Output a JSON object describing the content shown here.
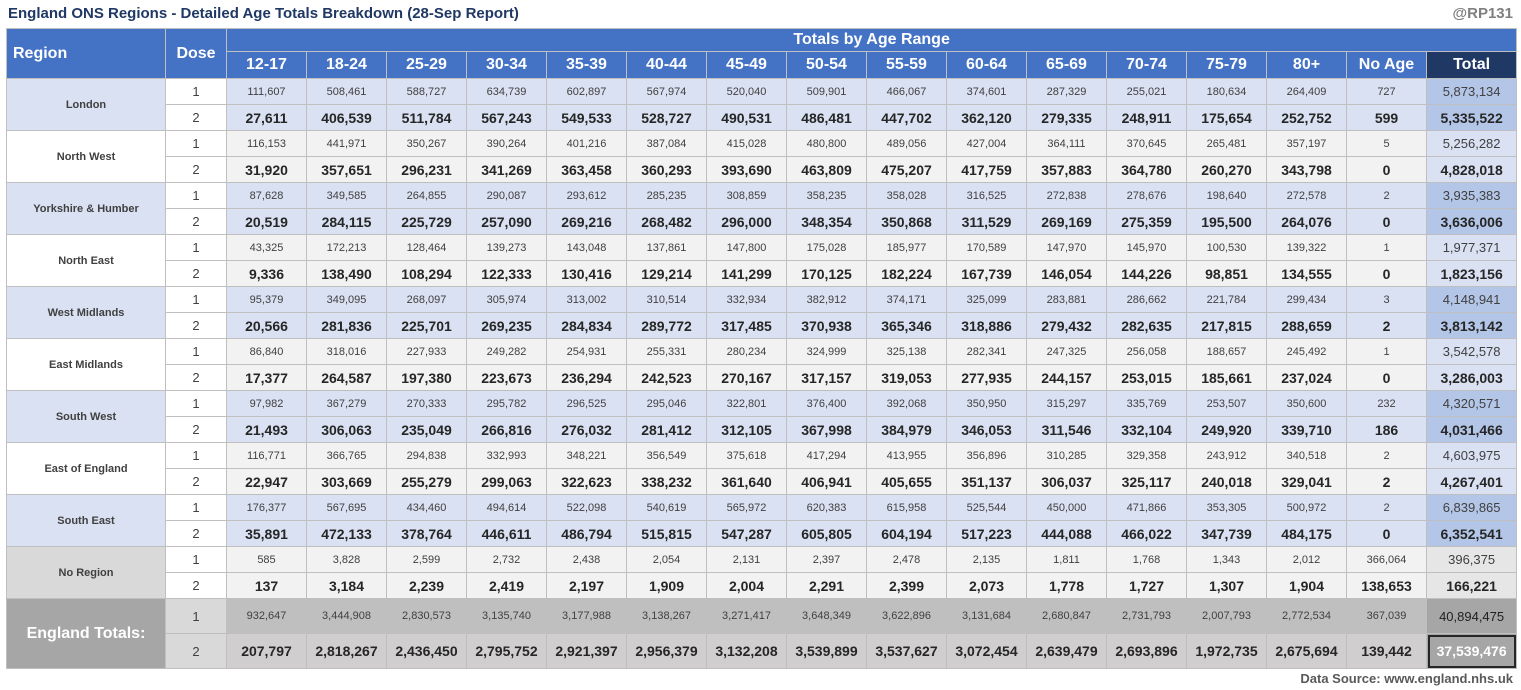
{
  "title": "England ONS Regions - Detailed Age Totals Breakdown (28-Sep Report)",
  "handle": "@RP131",
  "source": "Data Source: www.england.nhs.uk",
  "headers": {
    "region": "Region",
    "dose": "Dose",
    "group": "Totals by Age Range",
    "ages": [
      "12-17",
      "18-24",
      "25-29",
      "30-34",
      "35-39",
      "40-44",
      "45-49",
      "50-54",
      "55-59",
      "60-64",
      "65-69",
      "70-74",
      "75-79",
      "80+",
      "No Age"
    ],
    "total": "Total"
  },
  "regions": [
    {
      "name": "London",
      "style": "blue",
      "rows": [
        {
          "dose": "1",
          "values": [
            "111,607",
            "508,461",
            "588,727",
            "634,739",
            "602,897",
            "567,974",
            "520,040",
            "509,901",
            "466,067",
            "374,601",
            "287,329",
            "255,021",
            "180,634",
            "264,409",
            "727"
          ],
          "total": "5,873,134"
        },
        {
          "dose": "2",
          "values": [
            "27,611",
            "406,539",
            "511,784",
            "567,243",
            "549,533",
            "528,727",
            "490,531",
            "486,481",
            "447,702",
            "362,120",
            "279,335",
            "248,911",
            "175,654",
            "252,752",
            "599"
          ],
          "total": "5,335,522"
        }
      ]
    },
    {
      "name": "North West",
      "style": "white",
      "rows": [
        {
          "dose": "1",
          "values": [
            "116,153",
            "441,971",
            "350,267",
            "390,264",
            "401,216",
            "387,084",
            "415,028",
            "480,800",
            "489,056",
            "427,004",
            "364,111",
            "370,645",
            "265,481",
            "357,197",
            "5"
          ],
          "total": "5,256,282"
        },
        {
          "dose": "2",
          "values": [
            "31,920",
            "357,651",
            "296,231",
            "341,269",
            "363,458",
            "360,293",
            "393,690",
            "463,809",
            "475,207",
            "417,759",
            "357,883",
            "364,780",
            "260,270",
            "343,798",
            "0"
          ],
          "total": "4,828,018"
        }
      ]
    },
    {
      "name": "Yorkshire & Humber",
      "style": "blue",
      "rows": [
        {
          "dose": "1",
          "values": [
            "87,628",
            "349,585",
            "264,855",
            "290,087",
            "293,612",
            "285,235",
            "308,859",
            "358,235",
            "358,028",
            "316,525",
            "272,838",
            "278,676",
            "198,640",
            "272,578",
            "2"
          ],
          "total": "3,935,383"
        },
        {
          "dose": "2",
          "values": [
            "20,519",
            "284,115",
            "225,729",
            "257,090",
            "269,216",
            "268,482",
            "296,000",
            "348,354",
            "350,868",
            "311,529",
            "269,169",
            "275,359",
            "195,500",
            "264,076",
            "0"
          ],
          "total": "3,636,006"
        }
      ]
    },
    {
      "name": "North East",
      "style": "white",
      "rows": [
        {
          "dose": "1",
          "values": [
            "43,325",
            "172,213",
            "128,464",
            "139,273",
            "143,048",
            "137,861",
            "147,800",
            "175,028",
            "185,977",
            "170,589",
            "147,970",
            "145,970",
            "100,530",
            "139,322",
            "1"
          ],
          "total": "1,977,371"
        },
        {
          "dose": "2",
          "values": [
            "9,336",
            "138,490",
            "108,294",
            "122,333",
            "130,416",
            "129,214",
            "141,299",
            "170,125",
            "182,224",
            "167,739",
            "146,054",
            "144,226",
            "98,851",
            "134,555",
            "0"
          ],
          "total": "1,823,156"
        }
      ]
    },
    {
      "name": "West Midlands",
      "style": "blue",
      "rows": [
        {
          "dose": "1",
          "values": [
            "95,379",
            "349,095",
            "268,097",
            "305,974",
            "313,002",
            "310,514",
            "332,934",
            "382,912",
            "374,171",
            "325,099",
            "283,881",
            "286,662",
            "221,784",
            "299,434",
            "3"
          ],
          "total": "4,148,941"
        },
        {
          "dose": "2",
          "values": [
            "20,566",
            "281,836",
            "225,701",
            "269,235",
            "284,834",
            "289,772",
            "317,485",
            "370,938",
            "365,346",
            "318,886",
            "279,432",
            "282,635",
            "217,815",
            "288,659",
            "2"
          ],
          "total": "3,813,142"
        }
      ]
    },
    {
      "name": "East Midlands",
      "style": "white",
      "rows": [
        {
          "dose": "1",
          "values": [
            "86,840",
            "318,016",
            "227,933",
            "249,282",
            "254,931",
            "255,331",
            "280,234",
            "324,999",
            "325,138",
            "282,341",
            "247,325",
            "256,058",
            "188,657",
            "245,492",
            "1"
          ],
          "total": "3,542,578"
        },
        {
          "dose": "2",
          "values": [
            "17,377",
            "264,587",
            "197,380",
            "223,673",
            "236,294",
            "242,523",
            "270,167",
            "317,157",
            "319,053",
            "277,935",
            "244,157",
            "253,015",
            "185,661",
            "237,024",
            "0"
          ],
          "total": "3,286,003"
        }
      ]
    },
    {
      "name": "South West",
      "style": "blue",
      "rows": [
        {
          "dose": "1",
          "values": [
            "97,982",
            "367,279",
            "270,333",
            "295,782",
            "296,525",
            "295,046",
            "322,801",
            "376,400",
            "392,068",
            "350,950",
            "315,297",
            "335,769",
            "253,507",
            "350,600",
            "232"
          ],
          "total": "4,320,571"
        },
        {
          "dose": "2",
          "values": [
            "21,493",
            "306,063",
            "235,049",
            "266,816",
            "276,032",
            "281,412",
            "312,105",
            "367,998",
            "384,979",
            "346,053",
            "311,546",
            "332,104",
            "249,920",
            "339,710",
            "186"
          ],
          "total": "4,031,466"
        }
      ]
    },
    {
      "name": "East of England",
      "style": "white",
      "rows": [
        {
          "dose": "1",
          "values": [
            "116,771",
            "366,765",
            "294,838",
            "332,993",
            "348,221",
            "356,549",
            "375,618",
            "417,294",
            "413,955",
            "356,896",
            "310,285",
            "329,358",
            "243,912",
            "340,518",
            "2"
          ],
          "total": "4,603,975"
        },
        {
          "dose": "2",
          "values": [
            "22,947",
            "303,669",
            "255,279",
            "299,063",
            "322,623",
            "338,232",
            "361,640",
            "406,941",
            "405,655",
            "351,137",
            "306,037",
            "325,117",
            "240,018",
            "329,041",
            "2"
          ],
          "total": "4,267,401"
        }
      ]
    },
    {
      "name": "South East",
      "style": "blue",
      "rows": [
        {
          "dose": "1",
          "values": [
            "176,377",
            "567,695",
            "434,460",
            "494,614",
            "522,098",
            "540,619",
            "565,972",
            "620,383",
            "615,958",
            "525,544",
            "450,000",
            "471,866",
            "353,305",
            "500,972",
            "2"
          ],
          "total": "6,839,865"
        },
        {
          "dose": "2",
          "values": [
            "35,891",
            "472,133",
            "378,764",
            "446,611",
            "486,794",
            "515,815",
            "547,287",
            "605,805",
            "604,194",
            "517,223",
            "444,088",
            "466,022",
            "347,739",
            "484,175",
            "0"
          ],
          "total": "6,352,541"
        }
      ]
    },
    {
      "name": "No Region",
      "style": "gray",
      "rows": [
        {
          "dose": "1",
          "values": [
            "585",
            "3,828",
            "2,599",
            "2,732",
            "2,438",
            "2,054",
            "2,131",
            "2,397",
            "2,478",
            "2,135",
            "1,811",
            "1,768",
            "1,343",
            "2,012",
            "366,064"
          ],
          "total": "396,375"
        },
        {
          "dose": "2",
          "values": [
            "137",
            "3,184",
            "2,239",
            "2,419",
            "2,197",
            "1,909",
            "2,004",
            "2,291",
            "2,399",
            "2,073",
            "1,778",
            "1,727",
            "1,307",
            "1,904",
            "138,653"
          ],
          "total": "166,221"
        }
      ]
    }
  ],
  "england": {
    "name": "England Totals:",
    "rows": [
      {
        "dose": "1",
        "values": [
          "932,647",
          "3,444,908",
          "2,830,573",
          "3,135,740",
          "3,177,988",
          "3,138,267",
          "3,271,417",
          "3,648,349",
          "3,622,896",
          "3,131,684",
          "2,680,847",
          "2,731,793",
          "2,007,793",
          "2,772,534",
          "367,039"
        ],
        "total": "40,894,475"
      },
      {
        "dose": "2",
        "values": [
          "207,797",
          "2,818,267",
          "2,436,450",
          "2,795,752",
          "2,921,397",
          "2,956,379",
          "3,132,208",
          "3,539,899",
          "3,537,627",
          "3,072,454",
          "2,639,479",
          "2,693,896",
          "1,972,735",
          "2,675,694",
          "139,442"
        ],
        "total": "37,539,476"
      }
    ]
  }
}
